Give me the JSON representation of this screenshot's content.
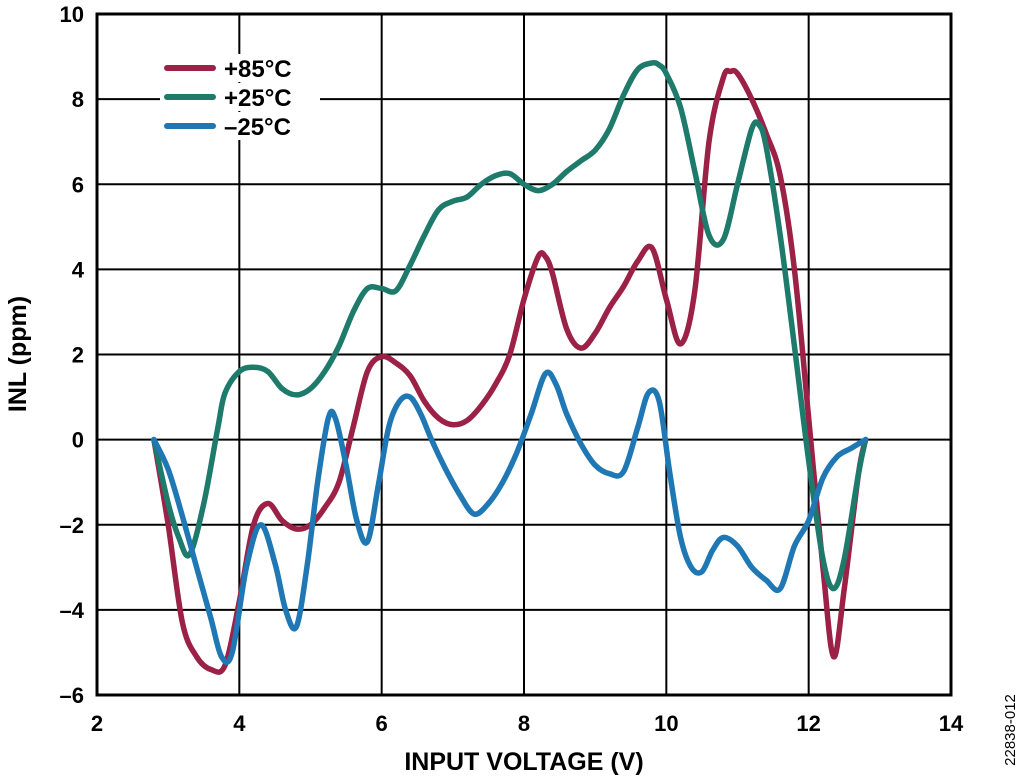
{
  "chart_data": {
    "type": "line",
    "title": "",
    "xlabel": "INPUT VOLTAGE (V)",
    "ylabel": "INL (ppm)",
    "xlim": [
      2,
      14
    ],
    "ylim": [
      -6,
      10
    ],
    "xticks": [
      2,
      4,
      6,
      8,
      10,
      12,
      14
    ],
    "yticks": [
      -6,
      -4,
      -2,
      0,
      2,
      4,
      6,
      8,
      10
    ],
    "xtick_labels": [
      "2",
      "4",
      "6",
      "8",
      "10",
      "12",
      "14"
    ],
    "ytick_labels": [
      "–6",
      "–4",
      "–2",
      "0",
      "2",
      "4",
      "6",
      "8",
      "10"
    ],
    "grid": true,
    "legend_position": "top-left",
    "figure_id": "22838-012",
    "series": [
      {
        "name": "+85°C",
        "color": "#9b2146",
        "x": [
          2.8,
          3.0,
          3.2,
          3.4,
          3.6,
          3.8,
          4.0,
          4.2,
          4.4,
          4.6,
          4.8,
          5.0,
          5.2,
          5.4,
          5.6,
          5.8,
          6.0,
          6.2,
          6.4,
          6.6,
          6.8,
          7.0,
          7.2,
          7.4,
          7.6,
          7.8,
          8.0,
          8.2,
          8.3,
          8.4,
          8.6,
          8.8,
          9.0,
          9.2,
          9.4,
          9.6,
          9.8,
          10.0,
          10.2,
          10.4,
          10.6,
          10.8,
          10.9,
          11.0,
          11.2,
          11.4,
          11.6,
          11.8,
          12.0,
          12.2,
          12.35,
          12.5,
          12.7,
          12.8
        ],
        "values": [
          0.0,
          -2.0,
          -4.3,
          -5.1,
          -5.4,
          -5.3,
          -3.8,
          -2.0,
          -1.5,
          -1.9,
          -2.1,
          -2.0,
          -1.6,
          -1.0,
          0.3,
          1.6,
          1.95,
          1.8,
          1.5,
          0.9,
          0.5,
          0.35,
          0.45,
          0.8,
          1.3,
          2.0,
          3.3,
          4.3,
          4.3,
          3.9,
          2.6,
          2.15,
          2.5,
          3.1,
          3.6,
          4.2,
          4.5,
          3.3,
          2.25,
          3.5,
          7.0,
          8.5,
          8.65,
          8.6,
          8.0,
          7.2,
          6.2,
          4.0,
          0.5,
          -3.0,
          -5.1,
          -3.5,
          -0.8,
          0.0
        ]
      },
      {
        "name": "+25°C",
        "color": "#1e7a6b",
        "x": [
          2.8,
          3.0,
          3.15,
          3.3,
          3.5,
          3.7,
          3.8,
          4.0,
          4.2,
          4.4,
          4.6,
          4.8,
          5.0,
          5.2,
          5.4,
          5.6,
          5.8,
          6.0,
          6.2,
          6.4,
          6.6,
          6.8,
          7.0,
          7.2,
          7.4,
          7.6,
          7.8,
          8.0,
          8.2,
          8.4,
          8.6,
          8.8,
          9.0,
          9.2,
          9.4,
          9.6,
          9.8,
          9.9,
          10.0,
          10.2,
          10.4,
          10.6,
          10.8,
          11.0,
          11.2,
          11.3,
          11.4,
          11.6,
          11.8,
          12.0,
          12.2,
          12.35,
          12.5,
          12.7,
          12.8
        ],
        "values": [
          0.0,
          -1.5,
          -2.3,
          -2.7,
          -1.5,
          0.3,
          1.1,
          1.6,
          1.7,
          1.6,
          1.2,
          1.05,
          1.2,
          1.6,
          2.2,
          3.0,
          3.55,
          3.55,
          3.5,
          4.1,
          4.8,
          5.4,
          5.6,
          5.7,
          6.0,
          6.2,
          6.25,
          6.0,
          5.85,
          6.0,
          6.3,
          6.55,
          6.8,
          7.3,
          8.1,
          8.7,
          8.85,
          8.8,
          8.6,
          7.8,
          6.3,
          4.8,
          4.7,
          6.0,
          7.3,
          7.4,
          6.9,
          4.8,
          2.2,
          -0.5,
          -2.8,
          -3.5,
          -2.8,
          -0.8,
          0.0
        ]
      },
      {
        "name": "–25°C",
        "color": "#1f78b4",
        "x": [
          2.8,
          3.0,
          3.2,
          3.4,
          3.6,
          3.75,
          3.9,
          4.1,
          4.3,
          4.5,
          4.65,
          4.8,
          4.95,
          5.1,
          5.25,
          5.35,
          5.5,
          5.65,
          5.8,
          5.95,
          6.1,
          6.25,
          6.4,
          6.55,
          6.7,
          6.9,
          7.1,
          7.3,
          7.5,
          7.7,
          7.9,
          8.1,
          8.3,
          8.45,
          8.6,
          8.8,
          9.0,
          9.2,
          9.4,
          9.6,
          9.75,
          9.9,
          10.05,
          10.2,
          10.35,
          10.5,
          10.65,
          10.8,
          11.0,
          11.2,
          11.4,
          11.6,
          11.8,
          12.0,
          12.2,
          12.4,
          12.6,
          12.8
        ],
        "values": [
          0.0,
          -0.7,
          -1.8,
          -3.0,
          -4.2,
          -5.1,
          -5.0,
          -3.0,
          -2.0,
          -2.9,
          -4.0,
          -4.4,
          -3.0,
          -1.0,
          0.5,
          0.5,
          -0.6,
          -1.9,
          -2.4,
          -1.1,
          0.3,
          0.9,
          1.0,
          0.6,
          0.0,
          -0.7,
          -1.3,
          -1.75,
          -1.5,
          -1.0,
          -0.3,
          0.6,
          1.55,
          1.3,
          0.6,
          -0.1,
          -0.6,
          -0.8,
          -0.75,
          0.3,
          1.1,
          0.9,
          -0.8,
          -2.3,
          -3.0,
          -3.1,
          -2.6,
          -2.3,
          -2.5,
          -3.0,
          -3.3,
          -3.5,
          -2.5,
          -1.9,
          -0.9,
          -0.4,
          -0.2,
          0.0
        ]
      }
    ]
  }
}
